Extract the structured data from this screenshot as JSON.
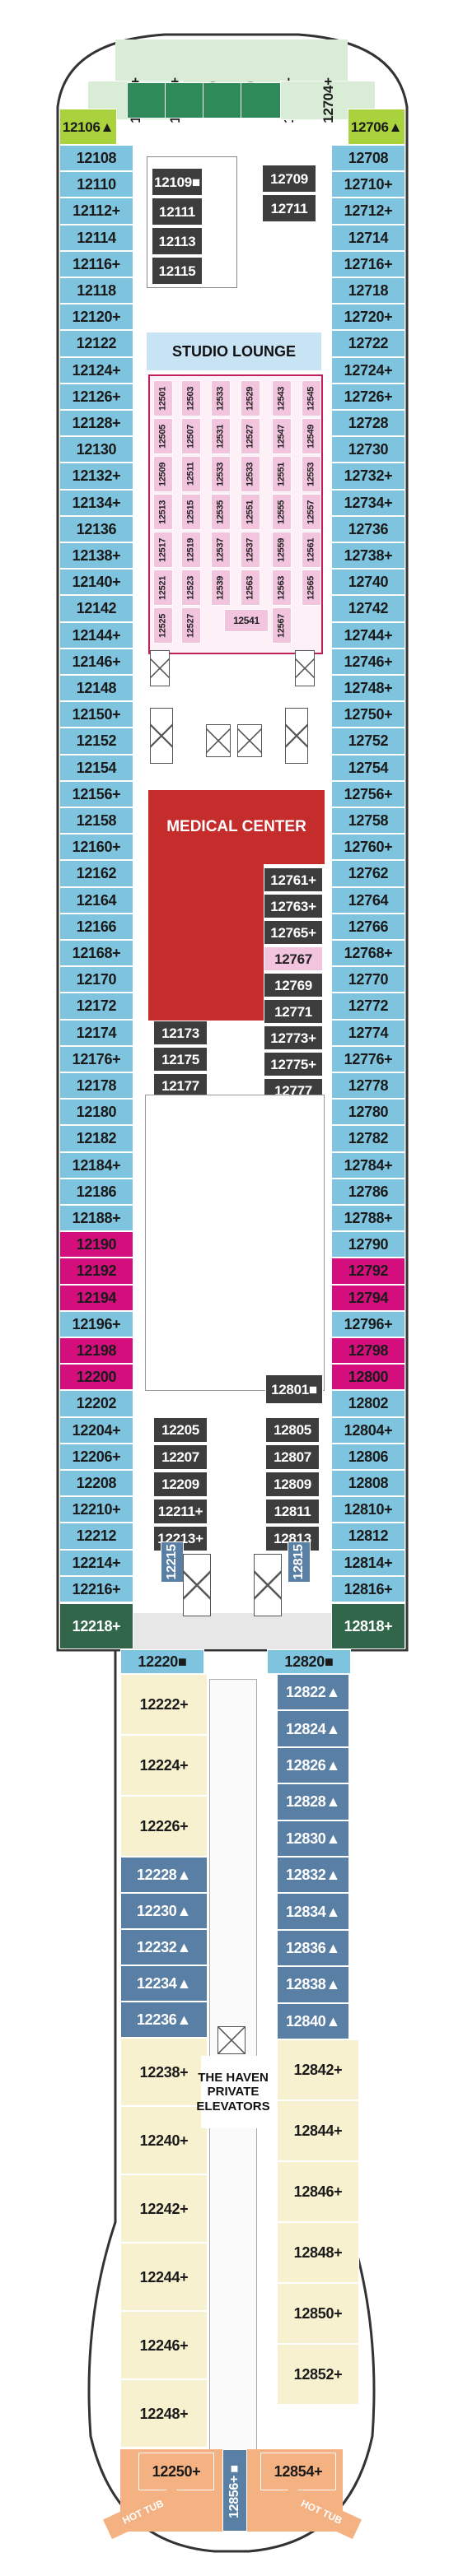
{
  "colors": {
    "outside": "#7ec4de",
    "inside": "#f7f1cf",
    "haven_suite": "#5a7fa5",
    "spa_cabin": "#f2c4de",
    "accessible": "#d40f7d",
    "bow_end": "#a9d23c",
    "bow_green": "#2f8a5a",
    "stern_green": "#31664a",
    "studio": "#c8e3f4",
    "medical": "#c52d2d",
    "dark": "#3d3d3d",
    "hot_tub": "#f4b283",
    "deck_outline": "#333333"
  },
  "labels": {
    "studio_lounge": "STUDIO LOUNGE",
    "medical_center": "MEDICAL CENTER",
    "haven_elevators": "THE HAVEN PRIVATE ELEVATORS",
    "hot_tub_left": "HOT TUB",
    "hot_tub_right": "HOT TUB"
  },
  "bow": [
    "12104+",
    "12102+",
    "12100",
    "12700",
    "12702+",
    "12704+"
  ],
  "bow_corner": [
    "12106▲",
    "12706▲"
  ],
  "port_outer": [
    "12108",
    "12110",
    "12112+",
    "12114",
    "12116+",
    "12118",
    "12120+",
    "12122",
    "12124+",
    "12126+",
    "12128+",
    "12130",
    "12132+",
    "12134+",
    "12136",
    "12138+",
    "12140+",
    "12142",
    "12144+",
    "12146+",
    "12148",
    "12150+",
    "12152",
    "12154",
    "12156+",
    "12158",
    "12160+",
    "12162",
    "12164",
    "12166",
    "12168+",
    "12170",
    "12172",
    "12174",
    "12176+",
    "12178",
    "12180",
    "12182",
    "12184+",
    "12186",
    "12188+",
    "12190",
    "12192",
    "12194",
    "12196+",
    "12198",
    "12200",
    "12202",
    "12204+",
    "12206+",
    "12208",
    "12210+",
    "12212",
    "12214+",
    "12216+"
  ],
  "stbd_outer": [
    "12708",
    "12710+",
    "12712+",
    "12714",
    "12716+",
    "12718",
    "12720+",
    "12722",
    "12724+",
    "12726+",
    "12728",
    "12730",
    "12732+",
    "12734+",
    "12736",
    "12738+",
    "12740",
    "12742",
    "12744+",
    "12746+",
    "12748+",
    "12750+",
    "12752",
    "12754",
    "12756+",
    "12758",
    "12760+",
    "12762",
    "12764",
    "12766",
    "12768+",
    "12770",
    "12772",
    "12774",
    "12776+",
    "12778",
    "12780",
    "12782",
    "12784+",
    "12786",
    "12788+",
    "12790",
    "12792",
    "12794",
    "12796+",
    "12798",
    "12800",
    "12802",
    "12804+",
    "12806",
    "12808",
    "12810+",
    "12812",
    "12814+",
    "12816+"
  ],
  "accessible_port": [
    "12190",
    "12192",
    "12194",
    "12198",
    "12200"
  ],
  "accessible_stbd": [
    "12792",
    "12794",
    "12798",
    "12800"
  ],
  "aft_green": [
    "12218+",
    "12818+"
  ],
  "inside_top_left": [
    "12109■",
    "12111",
    "12113",
    "12115"
  ],
  "inside_top_right": [
    "12709",
    "12711"
  ],
  "spa_cols": [
    [
      "12501",
      "12505",
      "12509",
      "12513",
      "12517",
      "12521",
      "12525"
    ],
    [
      "12503",
      "12507",
      "12511",
      "12515",
      "12519",
      "12523",
      "12527"
    ],
    [
      "12533",
      "12531",
      "12533",
      "12535",
      "12537",
      "12539"
    ],
    [
      "12529",
      "12527",
      "12533",
      "12551",
      "12537",
      "12563"
    ],
    [
      "12543",
      "12547",
      "12551",
      "12555",
      "12559",
      "12563",
      "12567"
    ],
    [
      "12545",
      "12549",
      "12553",
      "12557",
      "12561",
      "12565"
    ]
  ],
  "spa_extra": [
    "12541"
  ],
  "medical_right": [
    "12761+",
    "12763+",
    "12765+",
    "12767",
    "12769",
    "12771",
    "12773+",
    "12775+",
    "12777"
  ],
  "mid_left": [
    "12173",
    "12175",
    "12177"
  ],
  "mid_right_single": [
    "12801■"
  ],
  "lower_left": [
    "12205",
    "12207",
    "12209",
    "12211+",
    "12213+"
  ],
  "lower_right": [
    "12805",
    "12807",
    "12809",
    "12811",
    "12813"
  ],
  "vertical_cabins": [
    "12215",
    "12815"
  ],
  "mid_aft": [
    "12220■",
    "12820■"
  ],
  "haven_left_inside": [
    "12222+",
    "12224+",
    "12226+"
  ],
  "haven_left_suites": [
    "12228▲",
    "12230▲",
    "12232▲",
    "12234▲",
    "12236▲"
  ],
  "haven_left_lower": [
    "12238+",
    "12240+",
    "12242+",
    "12244+",
    "12246+",
    "12248+"
  ],
  "haven_right_suites": [
    "12822▲",
    "12824▲",
    "12826▲",
    "12828▲",
    "12830▲",
    "12832▲",
    "12834▲",
    "12836▲",
    "12838▲",
    "12840▲"
  ],
  "haven_right_lower": [
    "12842+",
    "12844+",
    "12846+",
    "12848+",
    "12850+",
    "12852+"
  ],
  "stern": [
    "12250+",
    "12856+■",
    "12854+"
  ]
}
